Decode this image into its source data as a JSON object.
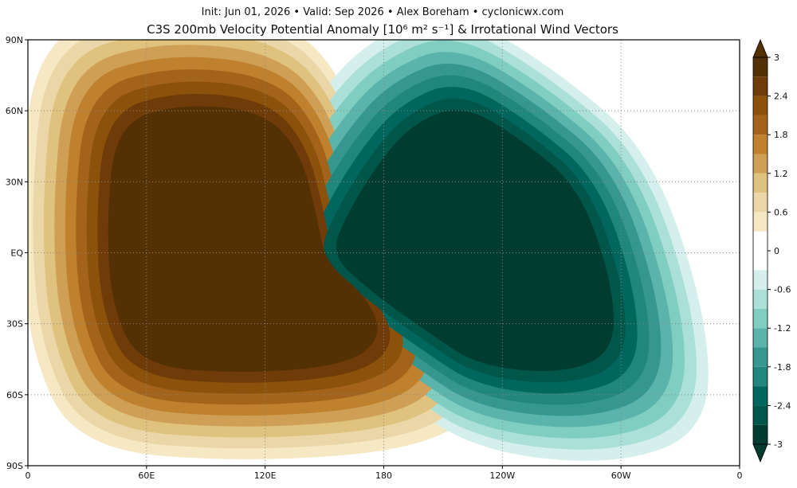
{
  "chart_data": {
    "type": "map",
    "subtitle": "Init: Jun 01, 2026 • Valid: Sep 2026 • Alex Boreham • cyclonicwx.com",
    "title": "C3S 200mb Velocity Potential Anomaly [10⁶ m² s⁻¹] & Irrotational Wind Vectors",
    "xlim": [
      0,
      360
    ],
    "xticks": [
      0,
      {
        "value": 60,
        "label": "60E"
      },
      {
        "value": 120,
        "label": "120E"
      },
      180,
      {
        "value": 240,
        "label": "120W"
      },
      {
        "value": 300,
        "label": "60W"
      },
      {
        "value": 360,
        "label": "0"
      }
    ],
    "ylim": [
      -90,
      90
    ],
    "yticks": [
      {
        "value": 90,
        "label": "90N"
      },
      {
        "value": 60,
        "label": "60N"
      },
      {
        "value": 30,
        "label": "30N"
      },
      {
        "value": 0,
        "label": "EQ"
      },
      {
        "value": -30,
        "label": "30S"
      },
      {
        "value": -60,
        "label": "60S"
      },
      {
        "value": -90,
        "label": "90S"
      }
    ],
    "grid": true,
    "clim": [
      -3,
      3
    ],
    "colorbar_ticks": [
      3,
      2.4,
      1.8,
      1.2,
      0.6,
      0,
      -0.6,
      -1.2,
      -1.8,
      -2.4,
      -3
    ],
    "colors": [
      "#003c30",
      "#01564a",
      "#01665e",
      "#21867c",
      "#35978f",
      "#5ab4ac",
      "#80cdc1",
      "#abe0d8",
      "#d4efec",
      "#ffffff",
      "#ffffff",
      "#f6e8c3",
      "#ebd6a8",
      "#dfc27d",
      "#cf9f55",
      "#bf812d",
      "#a3631a",
      "#8c510a",
      "#6f3c09",
      "#543005"
    ]
  }
}
